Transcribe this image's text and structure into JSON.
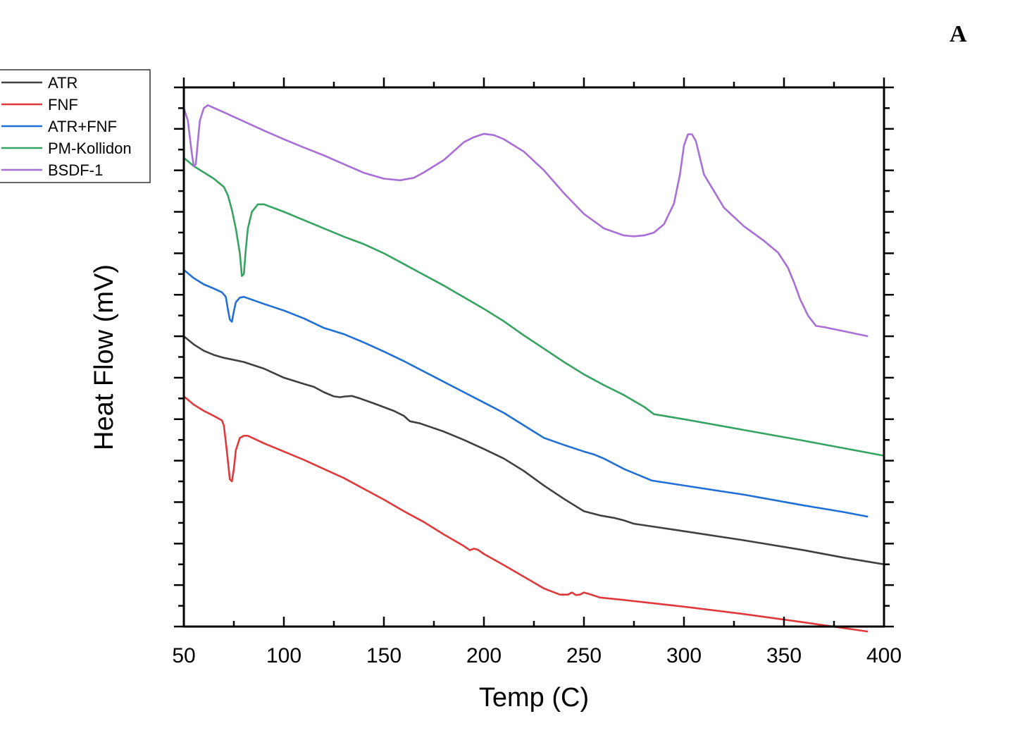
{
  "panel_label": "A",
  "colors": {
    "ATR": "#404040",
    "FNF": "#e0393c",
    "ATR+FNF": "#1f6fd6",
    "PM-Kollidon": "#36a362",
    "BSDF-1": "#a86fd6"
  },
  "chart_data": {
    "type": "line",
    "title": "",
    "xlabel": "Temp (C)",
    "ylabel": "Heat Flow (mV)",
    "xlim": [
      50,
      400
    ],
    "ylim": [
      0,
      13
    ],
    "x_ticks": [
      "50",
      "100",
      "150",
      "200",
      "250",
      "300",
      "350",
      "400"
    ],
    "y_ticks_labeled": false,
    "grid": false,
    "legend_position": "top-left",
    "series": [
      {
        "name": "ATR",
        "points": [
          [
            50,
            7.0
          ],
          [
            55,
            6.8
          ],
          [
            60,
            6.65
          ],
          [
            65,
            6.55
          ],
          [
            70,
            6.48
          ],
          [
            80,
            6.38
          ],
          [
            90,
            6.22
          ],
          [
            100,
            6.0
          ],
          [
            110,
            5.85
          ],
          [
            115,
            5.78
          ],
          [
            120,
            5.65
          ],
          [
            125,
            5.55
          ],
          [
            128,
            5.53
          ],
          [
            131,
            5.55
          ],
          [
            134,
            5.56
          ],
          [
            138,
            5.5
          ],
          [
            145,
            5.38
          ],
          [
            155,
            5.2
          ],
          [
            160,
            5.08
          ],
          [
            163,
            4.95
          ],
          [
            168,
            4.9
          ],
          [
            180,
            4.7
          ],
          [
            190,
            4.5
          ],
          [
            200,
            4.28
          ],
          [
            210,
            4.05
          ],
          [
            220,
            3.75
          ],
          [
            230,
            3.4
          ],
          [
            240,
            3.08
          ],
          [
            250,
            2.78
          ],
          [
            258,
            2.68
          ],
          [
            265,
            2.62
          ],
          [
            270,
            2.56
          ],
          [
            275,
            2.48
          ],
          [
            300,
            2.3
          ],
          [
            330,
            2.08
          ],
          [
            360,
            1.84
          ],
          [
            380,
            1.66
          ],
          [
            400,
            1.5
          ]
        ]
      },
      {
        "name": "FNF",
        "points": [
          [
            50,
            5.55
          ],
          [
            55,
            5.35
          ],
          [
            60,
            5.2
          ],
          [
            65,
            5.08
          ],
          [
            69,
            4.97
          ],
          [
            70,
            4.85
          ],
          [
            71,
            4.45
          ],
          [
            72,
            4.0
          ],
          [
            73,
            3.55
          ],
          [
            74,
            3.5
          ],
          [
            75,
            3.8
          ],
          [
            76,
            4.25
          ],
          [
            78,
            4.55
          ],
          [
            80,
            4.6
          ],
          [
            82,
            4.6
          ],
          [
            90,
            4.42
          ],
          [
            100,
            4.22
          ],
          [
            110,
            4.02
          ],
          [
            120,
            3.8
          ],
          [
            130,
            3.58
          ],
          [
            140,
            3.32
          ],
          [
            150,
            3.06
          ],
          [
            160,
            2.78
          ],
          [
            170,
            2.52
          ],
          [
            180,
            2.22
          ],
          [
            190,
            1.94
          ],
          [
            193,
            1.84
          ],
          [
            195,
            1.88
          ],
          [
            197,
            1.85
          ],
          [
            200,
            1.75
          ],
          [
            210,
            1.48
          ],
          [
            220,
            1.2
          ],
          [
            230,
            0.92
          ],
          [
            238,
            0.77
          ],
          [
            242,
            0.77
          ],
          [
            244,
            0.82
          ],
          [
            246,
            0.76
          ],
          [
            248,
            0.77
          ],
          [
            250,
            0.82
          ],
          [
            253,
            0.78
          ],
          [
            258,
            0.7
          ],
          [
            270,
            0.64
          ],
          [
            300,
            0.48
          ],
          [
            330,
            0.3
          ],
          [
            360,
            0.1
          ],
          [
            392,
            -0.12
          ]
        ]
      },
      {
        "name": "ATR+FNF",
        "points": [
          [
            50,
            8.6
          ],
          [
            55,
            8.4
          ],
          [
            60,
            8.25
          ],
          [
            65,
            8.15
          ],
          [
            69,
            8.06
          ],
          [
            71,
            7.95
          ],
          [
            72,
            7.65
          ],
          [
            73,
            7.4
          ],
          [
            74,
            7.35
          ],
          [
            75,
            7.6
          ],
          [
            76,
            7.82
          ],
          [
            78,
            7.93
          ],
          [
            80,
            7.95
          ],
          [
            90,
            7.78
          ],
          [
            100,
            7.62
          ],
          [
            110,
            7.43
          ],
          [
            120,
            7.2
          ],
          [
            130,
            7.05
          ],
          [
            140,
            6.85
          ],
          [
            150,
            6.63
          ],
          [
            160,
            6.4
          ],
          [
            170,
            6.15
          ],
          [
            180,
            5.9
          ],
          [
            190,
            5.65
          ],
          [
            200,
            5.4
          ],
          [
            210,
            5.15
          ],
          [
            220,
            4.85
          ],
          [
            230,
            4.55
          ],
          [
            240,
            4.38
          ],
          [
            250,
            4.22
          ],
          [
            255,
            4.15
          ],
          [
            260,
            4.05
          ],
          [
            270,
            3.8
          ],
          [
            280,
            3.6
          ],
          [
            284,
            3.52
          ],
          [
            300,
            3.4
          ],
          [
            330,
            3.18
          ],
          [
            360,
            2.92
          ],
          [
            380,
            2.76
          ],
          [
            392,
            2.65
          ]
        ]
      },
      {
        "name": "PM-Kollidon",
        "points": [
          [
            50,
            11.3
          ],
          [
            55,
            11.1
          ],
          [
            60,
            10.95
          ],
          [
            65,
            10.8
          ],
          [
            70,
            10.6
          ],
          [
            72,
            10.4
          ],
          [
            74,
            10.05
          ],
          [
            76,
            9.6
          ],
          [
            78,
            9.0
          ],
          [
            79,
            8.45
          ],
          [
            80,
            8.5
          ],
          [
            81,
            9.1
          ],
          [
            82,
            9.6
          ],
          [
            84,
            10.0
          ],
          [
            87,
            10.18
          ],
          [
            90,
            10.18
          ],
          [
            100,
            10.0
          ],
          [
            110,
            9.8
          ],
          [
            120,
            9.6
          ],
          [
            130,
            9.4
          ],
          [
            140,
            9.22
          ],
          [
            150,
            9.0
          ],
          [
            160,
            8.74
          ],
          [
            170,
            8.48
          ],
          [
            180,
            8.22
          ],
          [
            190,
            7.94
          ],
          [
            200,
            7.66
          ],
          [
            210,
            7.36
          ],
          [
            220,
            7.02
          ],
          [
            230,
            6.7
          ],
          [
            240,
            6.38
          ],
          [
            250,
            6.08
          ],
          [
            260,
            5.82
          ],
          [
            270,
            5.58
          ],
          [
            280,
            5.3
          ],
          [
            285,
            5.12
          ],
          [
            300,
            5.0
          ],
          [
            330,
            4.74
          ],
          [
            360,
            4.48
          ],
          [
            380,
            4.3
          ],
          [
            400,
            4.12
          ]
        ]
      },
      {
        "name": "BSDF-1",
        "points": [
          [
            50,
            12.5
          ],
          [
            52,
            12.2
          ],
          [
            53,
            11.8
          ],
          [
            54,
            11.4
          ],
          [
            55,
            11.1
          ],
          [
            56,
            11.15
          ],
          [
            57,
            11.7
          ],
          [
            58,
            12.2
          ],
          [
            60,
            12.5
          ],
          [
            62,
            12.57
          ],
          [
            70,
            12.4
          ],
          [
            80,
            12.18
          ],
          [
            90,
            11.96
          ],
          [
            100,
            11.75
          ],
          [
            110,
            11.55
          ],
          [
            120,
            11.36
          ],
          [
            130,
            11.15
          ],
          [
            140,
            10.94
          ],
          [
            150,
            10.8
          ],
          [
            158,
            10.76
          ],
          [
            165,
            10.82
          ],
          [
            170,
            10.95
          ],
          [
            180,
            11.25
          ],
          [
            190,
            11.68
          ],
          [
            195,
            11.8
          ],
          [
            200,
            11.88
          ],
          [
            205,
            11.85
          ],
          [
            210,
            11.75
          ],
          [
            220,
            11.45
          ],
          [
            230,
            11.0
          ],
          [
            240,
            10.45
          ],
          [
            250,
            9.95
          ],
          [
            260,
            9.6
          ],
          [
            270,
            9.43
          ],
          [
            275,
            9.41
          ],
          [
            280,
            9.43
          ],
          [
            285,
            9.5
          ],
          [
            290,
            9.7
          ],
          [
            295,
            10.2
          ],
          [
            298,
            10.9
          ],
          [
            300,
            11.6
          ],
          [
            302,
            11.87
          ],
          [
            304,
            11.87
          ],
          [
            306,
            11.7
          ],
          [
            308,
            11.3
          ],
          [
            310,
            10.9
          ],
          [
            315,
            10.5
          ],
          [
            320,
            10.1
          ],
          [
            330,
            9.65
          ],
          [
            340,
            9.3
          ],
          [
            347,
            9.02
          ],
          [
            352,
            8.65
          ],
          [
            355,
            8.3
          ],
          [
            358,
            7.9
          ],
          [
            362,
            7.5
          ],
          [
            366,
            7.25
          ],
          [
            370,
            7.22
          ],
          [
            380,
            7.12
          ],
          [
            392,
            7.0
          ]
        ]
      }
    ]
  }
}
